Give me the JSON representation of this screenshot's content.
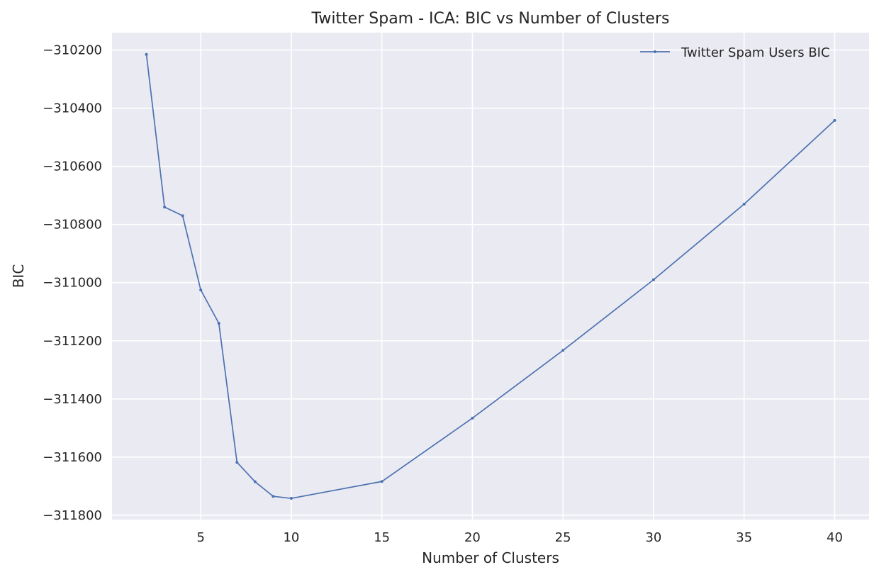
{
  "chart_data": {
    "type": "line",
    "title": "Twitter Spam - ICA: BIC vs Number of Clusters",
    "xlabel": "Number of Clusters",
    "ylabel": "BIC",
    "xlim": [
      0.1,
      41.9
    ],
    "ylim": [
      -311815,
      -310140
    ],
    "xticks": [
      5,
      10,
      15,
      20,
      25,
      30,
      35,
      40
    ],
    "xtick_labels": [
      "5",
      "10",
      "15",
      "20",
      "25",
      "30",
      "35",
      "40"
    ],
    "yticks": [
      -310200,
      -310400,
      -310600,
      -310800,
      -311000,
      -311200,
      -311400,
      -311600,
      -311800
    ],
    "ytick_labels": [
      "−310200",
      "−310400",
      "−310600",
      "−310800",
      "−311000",
      "−311200",
      "−311400",
      "−311600",
      "−311800"
    ],
    "grid": true,
    "legend_position": "top-right",
    "series": [
      {
        "name": "Twitter Spam Users BIC",
        "color": "#4c72b0",
        "x": [
          2,
          3,
          4,
          5,
          6,
          7,
          8,
          9,
          10,
          15,
          20,
          25,
          30,
          35,
          40
        ],
        "y": [
          -310215,
          -310740,
          -310770,
          -311025,
          -311140,
          -311618,
          -311685,
          -311735,
          -311742,
          -311684,
          -311466,
          -311233,
          -310990,
          -310730,
          -310442
        ]
      }
    ]
  },
  "colors": {
    "plot_background": "#eaeaf2",
    "grid": "#ffffff",
    "text": "#262626",
    "line": "#4c72b0"
  }
}
